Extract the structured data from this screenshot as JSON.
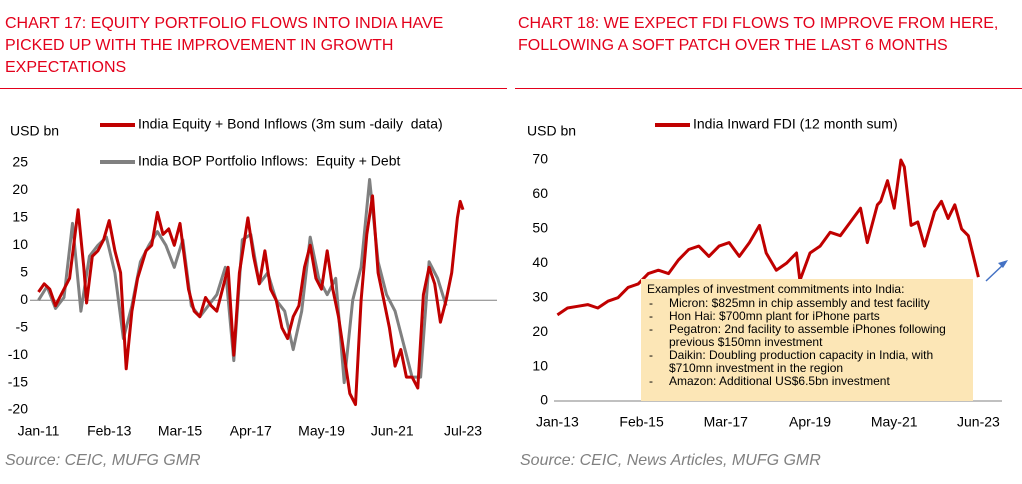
{
  "chart_data": [
    {
      "type": "line",
      "title": "CHART 17: EQUITY PORTFOLIO FLOWS INTO INDIA HAVE PICKED UP WITH THE IMPROVEMENT IN GROWTH EXPECTATIONS",
      "ylabel": "USD bn",
      "source": "Source: CEIC, MUFG GMR",
      "legend": "top",
      "xlim": [
        "2010-10",
        "2024-07"
      ],
      "xticks": [
        {
          "value": "2011-01",
          "label": "Jan-11"
        },
        {
          "value": "2013-02",
          "label": "Feb-13"
        },
        {
          "value": "2015-03",
          "label": "Mar-15"
        },
        {
          "value": "2017-04",
          "label": "Apr-17"
        },
        {
          "value": "2019-05",
          "label": "May-19"
        },
        {
          "value": "2021-06",
          "label": "Jun-21"
        },
        {
          "value": "2023-07",
          "label": "Jul-23"
        }
      ],
      "ylim": [
        -20,
        25
      ],
      "yticks": [
        -20,
        -15,
        -10,
        -5,
        0,
        5,
        10,
        15,
        20,
        25
      ],
      "series": [
        {
          "name": "India Equity + Bond Inflows (3m sum -daily  data)",
          "color": "#c00000",
          "x": [
            "2011-01",
            "2011-03",
            "2011-05",
            "2011-07",
            "2011-09",
            "2011-12",
            "2012-03",
            "2012-05",
            "2012-06",
            "2012-08",
            "2012-10",
            "2012-12",
            "2013-02",
            "2013-04",
            "2013-06",
            "2013-08",
            "2013-10",
            "2013-12",
            "2014-03",
            "2014-05",
            "2014-07",
            "2014-09",
            "2014-11",
            "2015-01",
            "2015-03",
            "2015-06",
            "2015-08",
            "2015-10",
            "2015-12",
            "2016-02",
            "2016-04",
            "2016-06",
            "2016-08",
            "2016-10",
            "2016-12",
            "2017-03",
            "2017-05",
            "2017-07",
            "2017-09",
            "2017-11",
            "2018-01",
            "2018-03",
            "2018-05",
            "2018-07",
            "2018-09",
            "2018-11",
            "2019-01",
            "2019-03",
            "2019-05",
            "2019-07",
            "2019-09",
            "2019-11",
            "2020-01",
            "2020-03",
            "2020-05",
            "2020-07",
            "2020-09",
            "2020-11",
            "2021-01",
            "2021-03",
            "2021-05",
            "2021-07",
            "2021-09",
            "2021-11",
            "2022-01",
            "2022-03",
            "2022-05",
            "2022-07",
            "2022-09",
            "2022-11",
            "2023-01",
            "2023-03",
            "2023-05",
            "2023-06",
            "2023-07"
          ],
          "values": [
            1.5,
            3,
            2,
            -1,
            1,
            4,
            16.5,
            6,
            -0.5,
            8,
            9,
            11,
            14.5,
            9,
            5,
            -12.5,
            -2,
            4,
            9,
            10,
            16,
            12,
            13,
            10,
            14,
            2,
            -2,
            -3,
            0.5,
            -1,
            -2,
            2,
            6,
            -10,
            5,
            15,
            8,
            3,
            9,
            2,
            0,
            -5,
            -7,
            -3,
            -1,
            6,
            10,
            4,
            2,
            9,
            2,
            -3,
            -10,
            -17,
            -19,
            0,
            12,
            19,
            5,
            0,
            -5,
            -12,
            -9,
            -14,
            -14,
            -16,
            1,
            6,
            3,
            -4,
            0,
            5,
            15,
            18,
            16.5
          ]
        },
        {
          "name": "India BOP Portfolio Inflows:  Equity + Debt",
          "color": "#808080",
          "x": [
            "2011-01",
            "2011-04",
            "2011-07",
            "2011-10",
            "2012-01",
            "2012-04",
            "2012-07",
            "2012-10",
            "2013-01",
            "2013-04",
            "2013-07",
            "2013-10",
            "2014-01",
            "2014-04",
            "2014-07",
            "2014-10",
            "2015-01",
            "2015-04",
            "2015-07",
            "2015-10",
            "2016-01",
            "2016-04",
            "2016-07",
            "2016-10",
            "2017-01",
            "2017-04",
            "2017-07",
            "2017-10",
            "2018-01",
            "2018-04",
            "2018-07",
            "2018-10",
            "2019-01",
            "2019-04",
            "2019-07",
            "2019-10",
            "2020-01",
            "2020-04",
            "2020-07",
            "2020-10",
            "2021-01",
            "2021-04",
            "2021-07",
            "2021-10",
            "2022-01",
            "2022-04",
            "2022-07",
            "2022-10",
            "2023-01"
          ],
          "values": [
            0,
            2.5,
            -1.5,
            0.5,
            14,
            -2,
            8,
            10,
            11.5,
            5,
            -7,
            -1,
            7,
            10,
            12.5,
            10,
            6,
            11,
            -1,
            -3,
            -1,
            1,
            6,
            -11,
            11,
            12,
            3,
            5,
            0,
            -2,
            -9,
            -2,
            11.5,
            4,
            1,
            4,
            -15,
            0,
            6,
            22,
            7,
            1,
            -2,
            -8,
            -14,
            -14,
            7,
            4,
            -1
          ]
        }
      ]
    },
    {
      "type": "line",
      "title": "CHART 18: WE EXPECT FDI FLOWS TO IMPROVE FROM HERE, FOLLOWING A SOFT PATCH OVER THE LAST 6 MONTHS",
      "ylabel": "USD bn",
      "source": "Source: CEIC, News Articles, MUFG GMR",
      "legend": "top",
      "xlim": [
        "2012-12",
        "2024-01"
      ],
      "xticks": [
        {
          "value": "2013-01",
          "label": "Jan-13"
        },
        {
          "value": "2015-02",
          "label": "Feb-15"
        },
        {
          "value": "2017-03",
          "label": "Mar-17"
        },
        {
          "value": "2019-04",
          "label": "Apr-19"
        },
        {
          "value": "2021-05",
          "label": "May-21"
        },
        {
          "value": "2023-06",
          "label": "Jun-23"
        }
      ],
      "ylim": [
        0,
        70
      ],
      "yticks": [
        0,
        10,
        20,
        30,
        40,
        50,
        60,
        70
      ],
      "series": [
        {
          "name": "India Inward FDI (12 month sum)",
          "color": "#c00000",
          "x": [
            "2013-01",
            "2013-04",
            "2013-07",
            "2013-10",
            "2014-01",
            "2014-04",
            "2014-07",
            "2014-10",
            "2015-01",
            "2015-04",
            "2015-07",
            "2015-10",
            "2016-01",
            "2016-04",
            "2016-07",
            "2016-10",
            "2017-01",
            "2017-04",
            "2017-07",
            "2017-10",
            "2018-01",
            "2018-03",
            "2018-06",
            "2018-09",
            "2018-12",
            "2019-01",
            "2019-04",
            "2019-07",
            "2019-10",
            "2020-01",
            "2020-04",
            "2020-07",
            "2020-09",
            "2020-12",
            "2021-01",
            "2021-03",
            "2021-05",
            "2021-07",
            "2021-08",
            "2021-10",
            "2021-12",
            "2022-02",
            "2022-05",
            "2022-07",
            "2022-09",
            "2022-11",
            "2023-01",
            "2023-03",
            "2023-05",
            "2023-06"
          ],
          "values": [
            25,
            27,
            27.5,
            28,
            27,
            29,
            30,
            33,
            34,
            37,
            38,
            37,
            41,
            44,
            45,
            42,
            45,
            46,
            42,
            46,
            51,
            43,
            38,
            40,
            43,
            35,
            43,
            45,
            49,
            48,
            52,
            56,
            46,
            57,
            58,
            64,
            56,
            70,
            68,
            51,
            52,
            45,
            55,
            58,
            53,
            57,
            50,
            48,
            40,
            36
          ]
        }
      ],
      "annotation": {
        "heading": "Examples of investment commitments into India:",
        "items": [
          "Micron: $825mn in chip assembly and test facility",
          "Hon Hai: $700mn plant for iPhone parts",
          "Pegatron: 2nd facility to assemble iPhones following previous $150mn investment",
          "Daikin: Doubling production capacity in India, with $710mn investment in the region",
          "Amazon: Additional US$6.5bn investment"
        ]
      }
    }
  ]
}
